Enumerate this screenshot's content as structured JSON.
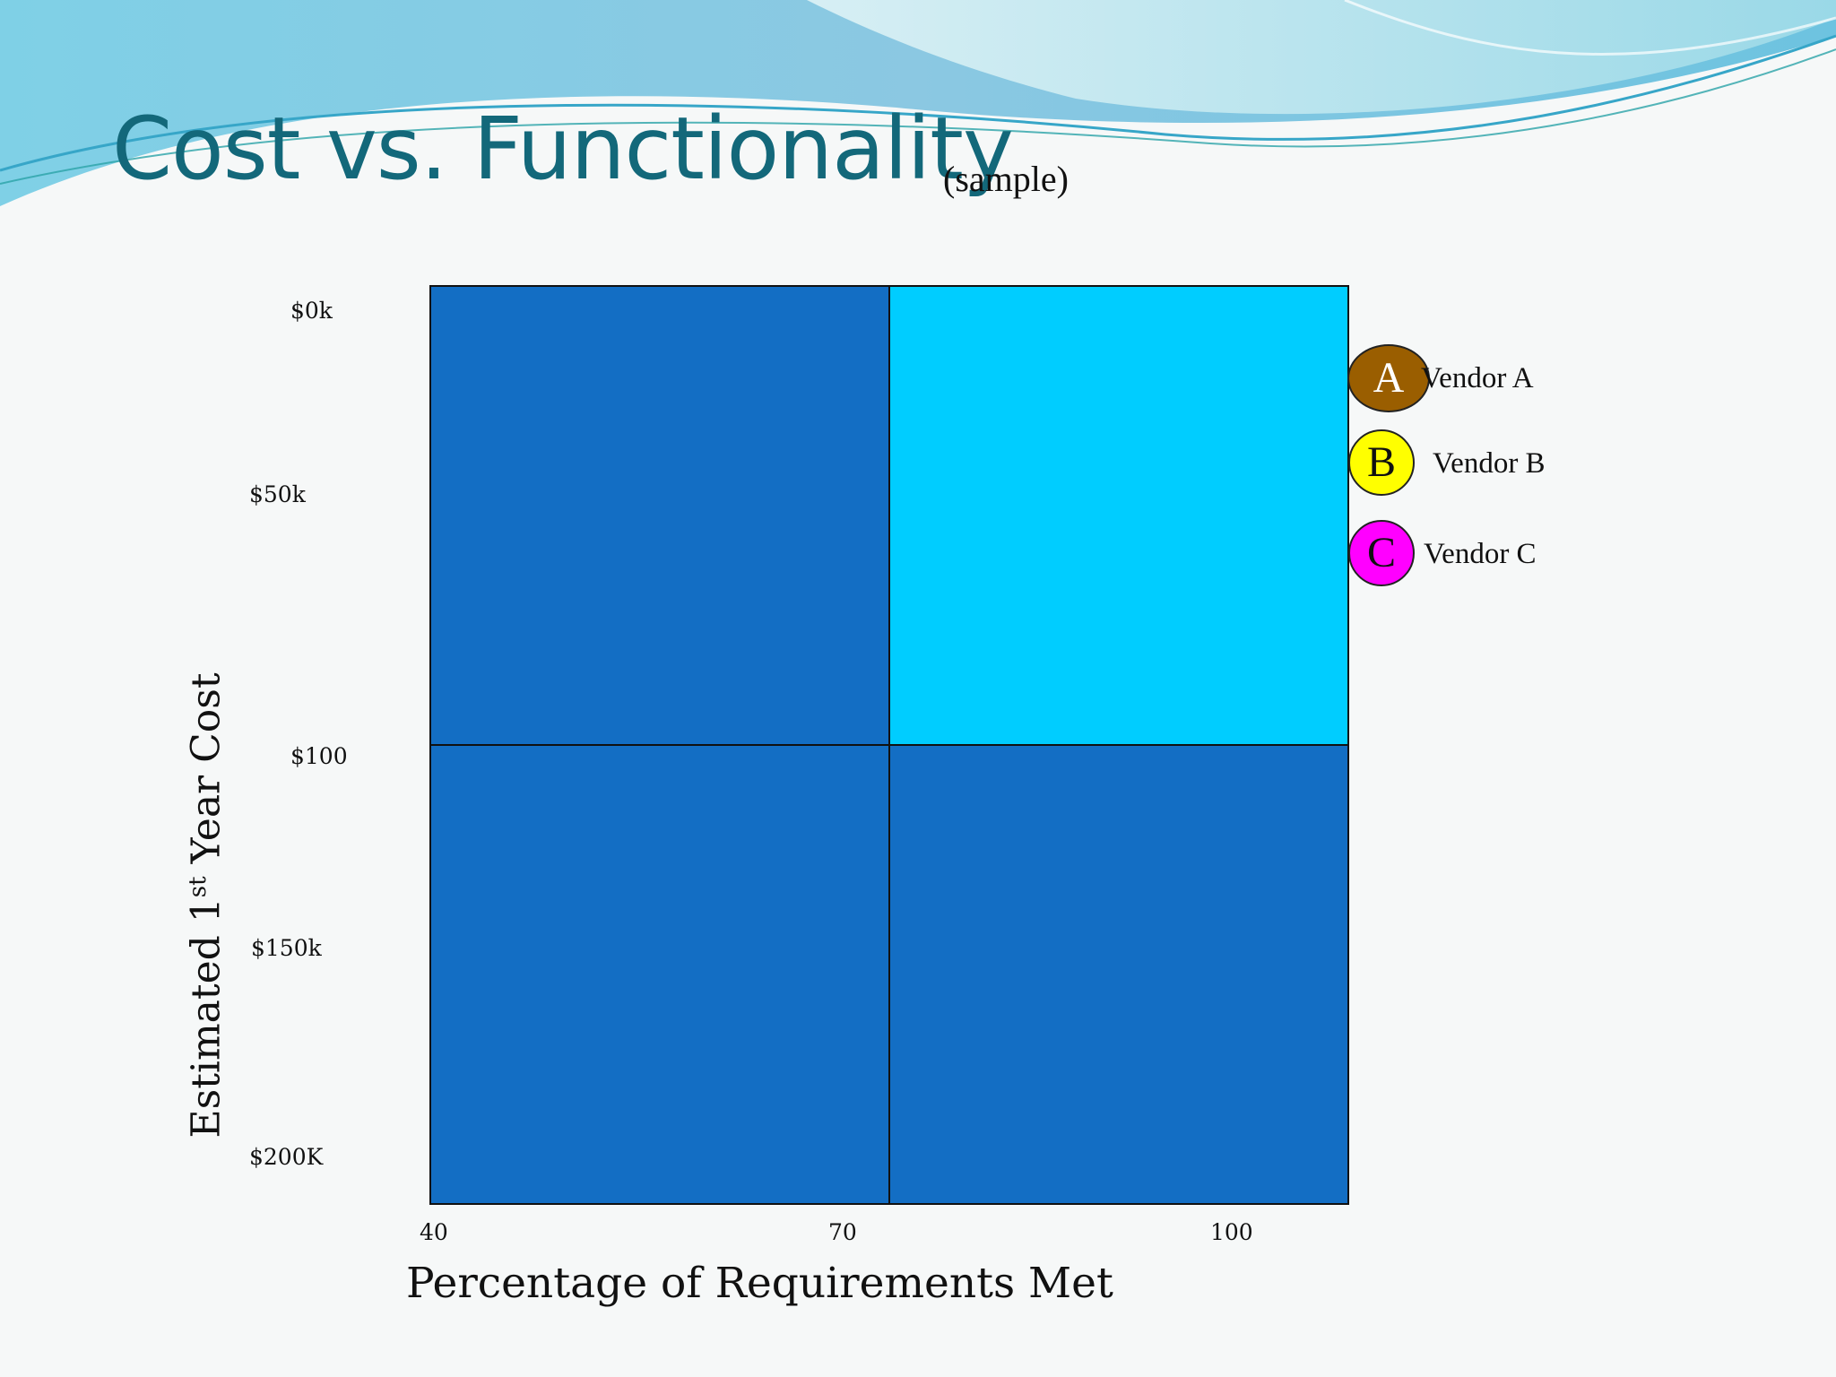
{
  "slide": {
    "title": "Cost vs. Functionality",
    "subtitle": "(sample)"
  },
  "chart_data": {
    "type": "quadrant",
    "y_axis": {
      "title_main": "Estimated 1",
      "title_sup": "st",
      "title_end": " Year Cost",
      "tick_labels": [
        "$0k",
        "$50k",
        "$100",
        "$150k",
        "$200K"
      ]
    },
    "x_axis": {
      "title": "Percentage of Requirements Met",
      "tick_labels": [
        "40",
        "70",
        "100"
      ]
    },
    "quadrants": [
      {
        "position": "top-left",
        "color": "#136ec4"
      },
      {
        "position": "top-right",
        "color": "#00cdff"
      },
      {
        "position": "bottom-left",
        "color": "#136ec4"
      },
      {
        "position": "bottom-right",
        "color": "#136ec4"
      }
    ],
    "legend": [
      {
        "marker": "A",
        "label": "Vendor A",
        "color": "#9a5e00",
        "text_color": "#ffffff"
      },
      {
        "marker": "B",
        "label": "Vendor B",
        "color": "#ffff00",
        "text_color": "#111111"
      },
      {
        "marker": "C",
        "label": "Vendor C",
        "color": "#ff00ff",
        "text_color": "#111111"
      }
    ]
  }
}
